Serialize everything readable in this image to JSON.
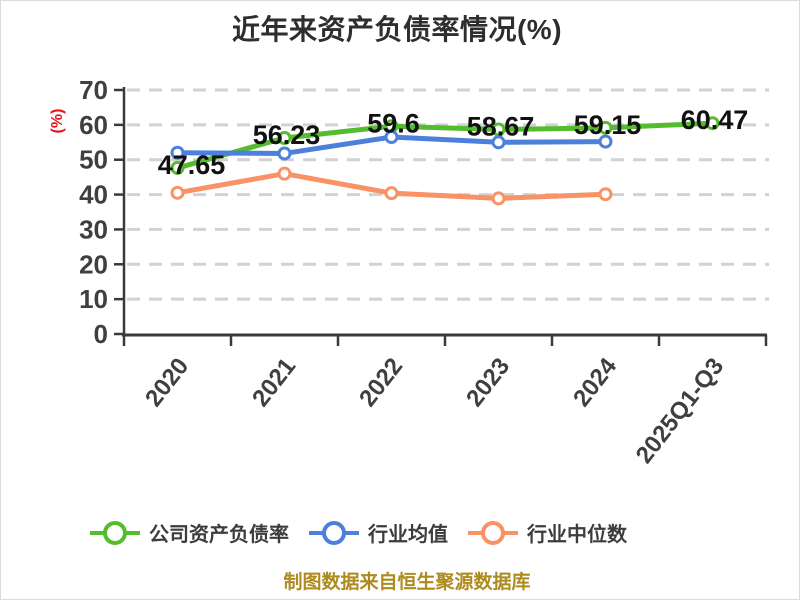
{
  "title": "近年来资产负债率情况(%)",
  "footer": "制图数据来自恒生聚源数据库",
  "colors": {
    "background": "#ffffff",
    "title_text": "#2e2e2e",
    "axis": "#3a3a3a",
    "grid": "#d2d2d2",
    "tick_text": "#3f3f3f",
    "y_axis_label": "#ee1111",
    "data_label": "#111111",
    "legend_text": "#3d3d3d",
    "footer_text": "#ad8b1f",
    "series_company": "#54bd2d",
    "series_mean": "#4d80db",
    "series_median": "#f99264"
  },
  "chart_data": {
    "type": "line",
    "title": "近年来资产负债率情况(%)",
    "xlabel": "",
    "ylabel": "(%)",
    "ylim": [
      0,
      70
    ],
    "yticks": [
      0,
      10,
      20,
      30,
      40,
      50,
      60,
      70
    ],
    "grid": true,
    "grid_style": "dashed",
    "legend_position": "bottom",
    "categories": [
      "2020",
      "2021",
      "2022",
      "2023",
      "2024",
      "2025Q1-Q3"
    ],
    "series": [
      {
        "name": "公司资产负债率",
        "color": "#54bd2d",
        "values": [
          47.65,
          56.23,
          59.6,
          58.67,
          59.15,
          60.47
        ],
        "data_labels": [
          "47.65",
          "56.23",
          "59.6",
          "58.67",
          "59.15",
          "60.47"
        ]
      },
      {
        "name": "行业均值",
        "color": "#4d80db",
        "values": [
          52.0,
          51.8,
          56.5,
          55.0,
          55.2,
          null
        ],
        "data_labels": null
      },
      {
        "name": "行业中位数",
        "color": "#f99264",
        "values": [
          40.5,
          46.0,
          40.4,
          38.9,
          40.1,
          null
        ],
        "data_labels": null
      }
    ]
  },
  "legend": {
    "items": [
      {
        "label": "公司资产负债率",
        "color": "#54bd2d"
      },
      {
        "label": "行业均值",
        "color": "#4d80db"
      },
      {
        "label": "行业中位数",
        "color": "#f99264"
      }
    ]
  }
}
